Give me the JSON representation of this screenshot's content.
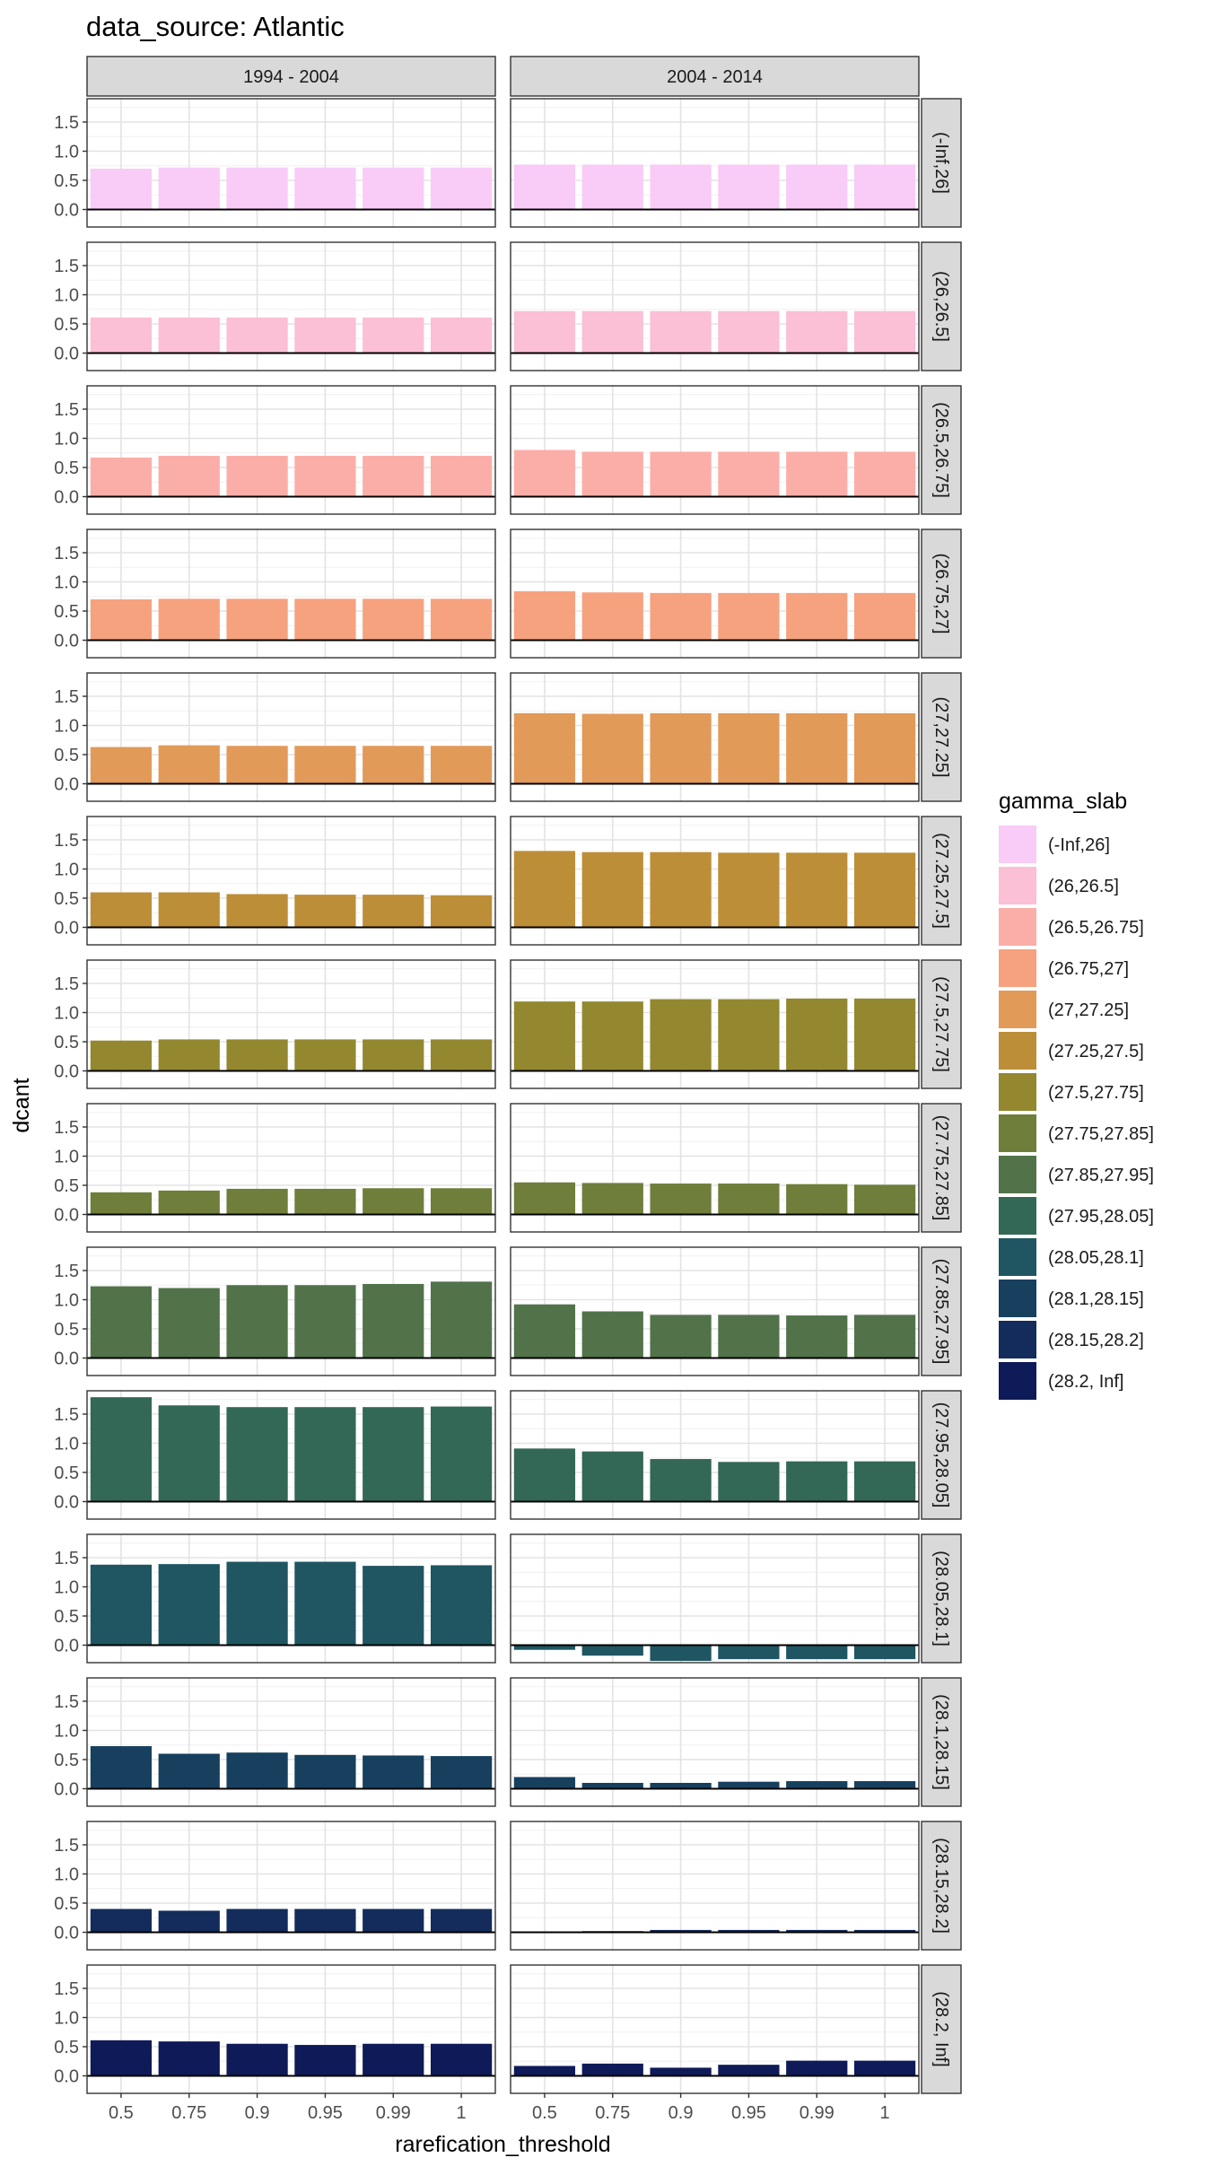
{
  "chart_data": {
    "type": "bar",
    "title": "data_source: Atlantic",
    "xlabel": "rarefication_threshold",
    "ylabel": "dcant",
    "categories": [
      "0.5",
      "0.75",
      "0.9",
      "0.95",
      "0.99",
      "1"
    ],
    "ylim": [
      -0.3,
      1.9
    ],
    "yticks": [
      "0.0",
      "0.5",
      "1.0",
      "1.5"
    ],
    "grid": true,
    "legend_position": "right",
    "legend_title": "gamma_slab",
    "columns": [
      "1994 - 2004",
      "2004 - 2014"
    ],
    "series": [
      {
        "name": "(-Inf,26]",
        "color": "#F9CBF7",
        "values": [
          [
            0.7,
            0.72,
            0.72,
            0.72,
            0.72,
            0.72
          ],
          [
            0.77,
            0.77,
            0.77,
            0.77,
            0.77,
            0.77
          ]
        ]
      },
      {
        "name": "(26,26.5]",
        "color": "#FBBFD6",
        "values": [
          [
            0.61,
            0.61,
            0.61,
            0.61,
            0.61,
            0.61
          ],
          [
            0.72,
            0.72,
            0.72,
            0.72,
            0.72,
            0.72
          ]
        ]
      },
      {
        "name": "(26.5,26.75]",
        "color": "#FBAEA8",
        "values": [
          [
            0.67,
            0.7,
            0.7,
            0.7,
            0.7,
            0.7
          ],
          [
            0.8,
            0.77,
            0.77,
            0.77,
            0.77,
            0.77
          ]
        ]
      },
      {
        "name": "(26.75,27]",
        "color": "#F6A27F",
        "values": [
          [
            0.7,
            0.71,
            0.71,
            0.71,
            0.71,
            0.71
          ],
          [
            0.84,
            0.82,
            0.81,
            0.81,
            0.81,
            0.81
          ]
        ]
      },
      {
        "name": "(27,27.25]",
        "color": "#E29A59",
        "values": [
          [
            0.63,
            0.66,
            0.65,
            0.65,
            0.65,
            0.65
          ],
          [
            1.21,
            1.2,
            1.21,
            1.21,
            1.21,
            1.21
          ]
        ]
      },
      {
        "name": "(27.25,27.5]",
        "color": "#BD8E38",
        "values": [
          [
            0.6,
            0.6,
            0.57,
            0.56,
            0.56,
            0.55
          ],
          [
            1.31,
            1.29,
            1.29,
            1.28,
            1.28,
            1.28
          ]
        ]
      },
      {
        "name": "(27.5,27.75]",
        "color": "#93882F",
        "values": [
          [
            0.52,
            0.54,
            0.54,
            0.54,
            0.54,
            0.54
          ],
          [
            1.19,
            1.19,
            1.23,
            1.23,
            1.24,
            1.24
          ]
        ]
      },
      {
        "name": "(27.75,27.85]",
        "color": "#6F7E3A",
        "values": [
          [
            0.38,
            0.41,
            0.44,
            0.44,
            0.45,
            0.45
          ],
          [
            0.55,
            0.54,
            0.53,
            0.53,
            0.52,
            0.51
          ]
        ]
      },
      {
        "name": "(27.85,27.95]",
        "color": "#52734A",
        "values": [
          [
            1.23,
            1.2,
            1.25,
            1.25,
            1.27,
            1.31
          ],
          [
            0.92,
            0.8,
            0.74,
            0.74,
            0.73,
            0.74
          ]
        ]
      },
      {
        "name": "(27.95,28.05]",
        "color": "#336856",
        "values": [
          [
            1.79,
            1.65,
            1.62,
            1.62,
            1.62,
            1.63
          ],
          [
            0.91,
            0.86,
            0.73,
            0.68,
            0.69,
            0.69
          ]
        ]
      },
      {
        "name": "(28.05,28.1]",
        "color": "#1F5662",
        "values": [
          [
            1.38,
            1.39,
            1.43,
            1.43,
            1.36,
            1.37
          ],
          [
            -0.08,
            -0.18,
            -0.27,
            -0.24,
            -0.24,
            -0.24
          ]
        ]
      },
      {
        "name": "(28.1,28.15]",
        "color": "#17405F",
        "values": [
          [
            0.73,
            0.6,
            0.62,
            0.58,
            0.57,
            0.56
          ],
          [
            0.2,
            0.1,
            0.1,
            0.12,
            0.13,
            0.13
          ]
        ]
      },
      {
        "name": "(28.15,28.2]",
        "color": "#132C5C",
        "values": [
          [
            0.4,
            0.37,
            0.4,
            0.4,
            0.4,
            0.4
          ],
          [
            0.01,
            0.02,
            0.04,
            0.04,
            0.04,
            0.04
          ]
        ]
      },
      {
        "name": "(28.2, Inf]",
        "color": "#0F1B58",
        "values": [
          [
            0.61,
            0.59,
            0.55,
            0.53,
            0.55,
            0.55
          ],
          [
            0.17,
            0.21,
            0.14,
            0.19,
            0.26,
            0.26
          ]
        ]
      }
    ]
  }
}
